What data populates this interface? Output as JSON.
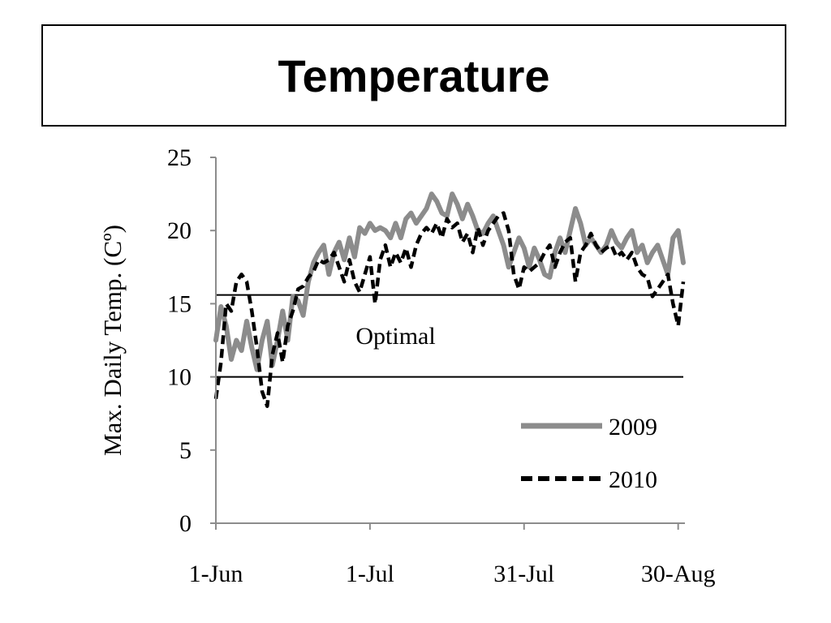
{
  "slide": {
    "title": "Temperature"
  },
  "chart_data": {
    "type": "line",
    "ylabel": "Max. Daily Temp. (Cº)",
    "xlabel": "",
    "ylim": [
      0,
      25
    ],
    "yticks": [
      0,
      5,
      10,
      15,
      20,
      25
    ],
    "xlim": [
      "2010-06-01",
      "2010-08-31"
    ],
    "xticks": [
      {
        "date": "2010-06-01",
        "label": "1-Jun"
      },
      {
        "date": "2010-07-01",
        "label": "1-Jul"
      },
      {
        "date": "2010-07-31",
        "label": "31-Jul"
      },
      {
        "date": "2010-08-30",
        "label": "30-Aug"
      }
    ],
    "grid": false,
    "legend_position": "bottom-right",
    "reference_lines": [
      {
        "y": 10,
        "color": "#000000"
      },
      {
        "y": 15.6,
        "color": "#000000"
      }
    ],
    "annotations": [
      {
        "text": "Optimal",
        "x": "2010-07-06",
        "y": 12.8
      }
    ],
    "series": [
      {
        "name": "2009",
        "color": "#8c8c8c",
        "style": "solid",
        "points": [
          [
            "2010-06-01",
            12.5
          ],
          [
            "2010-06-02",
            14.8
          ],
          [
            "2010-06-03",
            13.5
          ],
          [
            "2010-06-04",
            11.2
          ],
          [
            "2010-06-05",
            12.5
          ],
          [
            "2010-06-06",
            11.8
          ],
          [
            "2010-06-07",
            13.8
          ],
          [
            "2010-06-08",
            12.0
          ],
          [
            "2010-06-09",
            10.5
          ],
          [
            "2010-06-10",
            12.5
          ],
          [
            "2010-06-11",
            13.8
          ],
          [
            "2010-06-12",
            10.8
          ],
          [
            "2010-06-13",
            12.5
          ],
          [
            "2010-06-14",
            14.5
          ],
          [
            "2010-06-15",
            12.5
          ],
          [
            "2010-06-16",
            15.5
          ],
          [
            "2010-06-17",
            15.2
          ],
          [
            "2010-06-18",
            14.2
          ],
          [
            "2010-06-19",
            16.5
          ],
          [
            "2010-06-20",
            17.8
          ],
          [
            "2010-06-21",
            18.5
          ],
          [
            "2010-06-22",
            19.0
          ],
          [
            "2010-06-23",
            17.0
          ],
          [
            "2010-06-24",
            18.5
          ],
          [
            "2010-06-25",
            19.2
          ],
          [
            "2010-06-26",
            18.0
          ],
          [
            "2010-06-27",
            19.5
          ],
          [
            "2010-06-28",
            18.2
          ],
          [
            "2010-06-29",
            20.2
          ],
          [
            "2010-06-30",
            19.8
          ],
          [
            "2010-07-01",
            20.5
          ],
          [
            "2010-07-02",
            20.0
          ],
          [
            "2010-07-03",
            20.2
          ],
          [
            "2010-07-04",
            20.0
          ],
          [
            "2010-07-05",
            19.5
          ],
          [
            "2010-07-06",
            20.5
          ],
          [
            "2010-07-07",
            19.5
          ],
          [
            "2010-07-08",
            20.8
          ],
          [
            "2010-07-09",
            21.2
          ],
          [
            "2010-07-10",
            20.5
          ],
          [
            "2010-07-11",
            21.0
          ],
          [
            "2010-07-12",
            21.5
          ],
          [
            "2010-07-13",
            22.5
          ],
          [
            "2010-07-14",
            22.0
          ],
          [
            "2010-07-15",
            21.2
          ],
          [
            "2010-07-16",
            21.0
          ],
          [
            "2010-07-17",
            22.5
          ],
          [
            "2010-07-18",
            21.8
          ],
          [
            "2010-07-19",
            20.8
          ],
          [
            "2010-07-20",
            21.8
          ],
          [
            "2010-07-21",
            21.0
          ],
          [
            "2010-07-22",
            20.0
          ],
          [
            "2010-07-23",
            19.8
          ],
          [
            "2010-07-24",
            20.5
          ],
          [
            "2010-07-25",
            21.0
          ],
          [
            "2010-07-26",
            20.0
          ],
          [
            "2010-07-27",
            19.0
          ],
          [
            "2010-07-28",
            17.5
          ],
          [
            "2010-07-29",
            18.5
          ],
          [
            "2010-07-30",
            19.5
          ],
          [
            "2010-07-31",
            18.8
          ],
          [
            "2010-08-01",
            17.5
          ],
          [
            "2010-08-02",
            18.8
          ],
          [
            "2010-08-03",
            18.0
          ],
          [
            "2010-08-04",
            17.0
          ],
          [
            "2010-08-05",
            16.8
          ],
          [
            "2010-08-06",
            18.5
          ],
          [
            "2010-08-07",
            19.5
          ],
          [
            "2010-08-08",
            18.5
          ],
          [
            "2010-08-09",
            20.0
          ],
          [
            "2010-08-10",
            21.5
          ],
          [
            "2010-08-11",
            20.5
          ],
          [
            "2010-08-12",
            19.0
          ],
          [
            "2010-08-13",
            19.5
          ],
          [
            "2010-08-14",
            19.0
          ],
          [
            "2010-08-15",
            18.5
          ],
          [
            "2010-08-16",
            19.0
          ],
          [
            "2010-08-17",
            20.0
          ],
          [
            "2010-08-18",
            19.2
          ],
          [
            "2010-08-19",
            18.8
          ],
          [
            "2010-08-20",
            19.5
          ],
          [
            "2010-08-21",
            20.0
          ],
          [
            "2010-08-22",
            18.5
          ],
          [
            "2010-08-23",
            19.0
          ],
          [
            "2010-08-24",
            17.8
          ],
          [
            "2010-08-25",
            18.5
          ],
          [
            "2010-08-26",
            19.0
          ],
          [
            "2010-08-27",
            18.0
          ],
          [
            "2010-08-28",
            17.0
          ],
          [
            "2010-08-29",
            19.5
          ],
          [
            "2010-08-30",
            20.0
          ],
          [
            "2010-08-31",
            17.8
          ]
        ]
      },
      {
        "name": "2010",
        "color": "#000000",
        "style": "dashed",
        "points": [
          [
            "2010-06-01",
            8.5
          ],
          [
            "2010-06-02",
            11.0
          ],
          [
            "2010-06-03",
            15.0
          ],
          [
            "2010-06-04",
            14.5
          ],
          [
            "2010-06-05",
            16.5
          ],
          [
            "2010-06-06",
            17.0
          ],
          [
            "2010-06-07",
            16.5
          ],
          [
            "2010-06-08",
            14.5
          ],
          [
            "2010-06-09",
            12.0
          ],
          [
            "2010-06-10",
            9.0
          ],
          [
            "2010-06-11",
            8.0
          ],
          [
            "2010-06-12",
            11.5
          ],
          [
            "2010-06-13",
            13.0
          ],
          [
            "2010-06-14",
            11.0
          ],
          [
            "2010-06-15",
            13.5
          ],
          [
            "2010-06-16",
            14.5
          ],
          [
            "2010-06-17",
            16.0
          ],
          [
            "2010-06-18",
            16.2
          ],
          [
            "2010-06-19",
            16.8
          ],
          [
            "2010-06-20",
            17.2
          ],
          [
            "2010-06-21",
            18.0
          ],
          [
            "2010-06-22",
            17.8
          ],
          [
            "2010-06-23",
            18.0
          ],
          [
            "2010-06-24",
            18.5
          ],
          [
            "2010-06-25",
            17.5
          ],
          [
            "2010-06-26",
            16.5
          ],
          [
            "2010-06-27",
            18.0
          ],
          [
            "2010-06-28",
            16.5
          ],
          [
            "2010-06-29",
            15.8
          ],
          [
            "2010-06-30",
            17.0
          ],
          [
            "2010-07-01",
            18.2
          ],
          [
            "2010-07-02",
            15.0
          ],
          [
            "2010-07-03",
            18.0
          ],
          [
            "2010-07-04",
            19.0
          ],
          [
            "2010-07-05",
            17.5
          ],
          [
            "2010-07-06",
            18.5
          ],
          [
            "2010-07-07",
            17.8
          ],
          [
            "2010-07-08",
            18.8
          ],
          [
            "2010-07-09",
            17.5
          ],
          [
            "2010-07-10",
            19.0
          ],
          [
            "2010-07-11",
            19.8
          ],
          [
            "2010-07-12",
            20.2
          ],
          [
            "2010-07-13",
            19.8
          ],
          [
            "2010-07-14",
            20.5
          ],
          [
            "2010-07-15",
            19.5
          ],
          [
            "2010-07-16",
            20.8
          ],
          [
            "2010-07-17",
            20.2
          ],
          [
            "2010-07-18",
            20.5
          ],
          [
            "2010-07-19",
            19.2
          ],
          [
            "2010-07-20",
            19.8
          ],
          [
            "2010-07-21",
            18.5
          ],
          [
            "2010-07-22",
            20.2
          ],
          [
            "2010-07-23",
            19.0
          ],
          [
            "2010-07-24",
            20.0
          ],
          [
            "2010-07-25",
            20.5
          ],
          [
            "2010-07-26",
            21.0
          ],
          [
            "2010-07-27",
            21.2
          ],
          [
            "2010-07-28",
            20.0
          ],
          [
            "2010-07-29",
            17.0
          ],
          [
            "2010-07-30",
            16.0
          ],
          [
            "2010-07-31",
            17.5
          ],
          [
            "2010-08-01",
            17.2
          ],
          [
            "2010-08-02",
            17.5
          ],
          [
            "2010-08-03",
            17.8
          ],
          [
            "2010-08-04",
            18.5
          ],
          [
            "2010-08-05",
            19.0
          ],
          [
            "2010-08-06",
            17.5
          ],
          [
            "2010-08-07",
            18.5
          ],
          [
            "2010-08-08",
            19.2
          ],
          [
            "2010-08-09",
            19.5
          ],
          [
            "2010-08-10",
            16.5
          ],
          [
            "2010-08-11",
            18.5
          ],
          [
            "2010-08-12",
            19.0
          ],
          [
            "2010-08-13",
            19.8
          ],
          [
            "2010-08-14",
            19.0
          ],
          [
            "2010-08-15",
            18.5
          ],
          [
            "2010-08-16",
            18.8
          ],
          [
            "2010-08-17",
            19.0
          ],
          [
            "2010-08-18",
            18.2
          ],
          [
            "2010-08-19",
            18.5
          ],
          [
            "2010-08-20",
            18.0
          ],
          [
            "2010-08-21",
            18.5
          ],
          [
            "2010-08-22",
            17.5
          ],
          [
            "2010-08-23",
            17.0
          ],
          [
            "2010-08-24",
            16.8
          ],
          [
            "2010-08-25",
            15.5
          ],
          [
            "2010-08-26",
            16.0
          ],
          [
            "2010-08-27",
            16.5
          ],
          [
            "2010-08-28",
            17.0
          ],
          [
            "2010-08-29",
            15.0
          ],
          [
            "2010-08-30",
            13.5
          ],
          [
            "2010-08-31",
            16.5
          ]
        ]
      }
    ]
  }
}
